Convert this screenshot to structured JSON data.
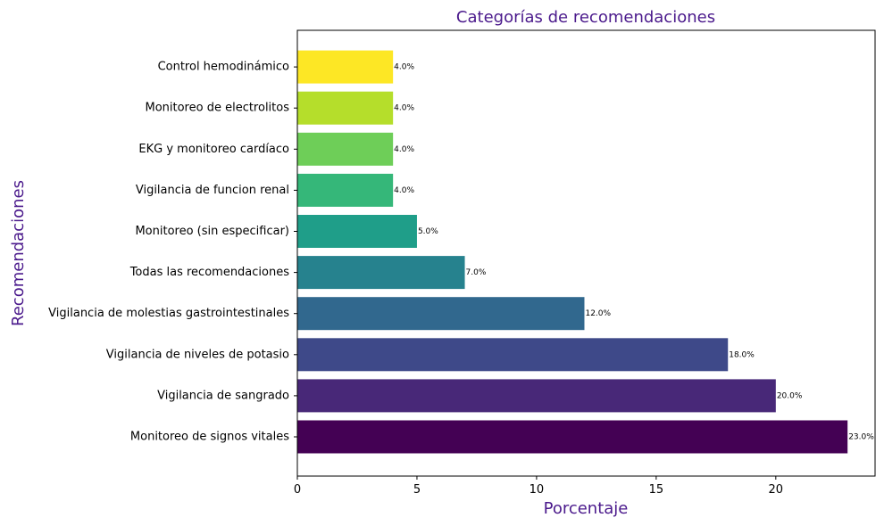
{
  "chart_data": {
    "type": "bar",
    "orientation": "horizontal",
    "title": "Categorías de recomendaciones",
    "xlabel": "Porcentaje",
    "ylabel": "Recomendaciones",
    "xlim": [
      0,
      24.15
    ],
    "xticks": [
      0,
      5,
      10,
      15,
      20
    ],
    "grid": false,
    "title_color": "#4b1a8c",
    "label_color": "#4b1a8c",
    "categories": [
      "Monitoreo de signos vitales",
      "Vigilancia de sangrado",
      "Vigilancia de niveles de potasio",
      "Vigilancia de molestias gastrointestinales",
      "Todas las recomendaciones",
      "Monitoreo (sin especificar)",
      "Vigilancia de funcion renal",
      "EKG y monitoreo cardíaco",
      "Monitoreo de electrolitos",
      "Control hemodinámico"
    ],
    "values": [
      23.0,
      20.0,
      18.0,
      12.0,
      7.0,
      5.0,
      4.0,
      4.0,
      4.0,
      4.0
    ],
    "data_labels": [
      "23.0%",
      "20.0%",
      "18.0%",
      "12.0%",
      "7.0%",
      "5.0%",
      "4.0%",
      "4.0%",
      "4.0%",
      "4.0%"
    ],
    "colors": [
      "#440154",
      "#482878",
      "#3e4989",
      "#31688e",
      "#26828e",
      "#1f9e89",
      "#35b779",
      "#6ece58",
      "#b5de2b",
      "#fde725"
    ]
  }
}
